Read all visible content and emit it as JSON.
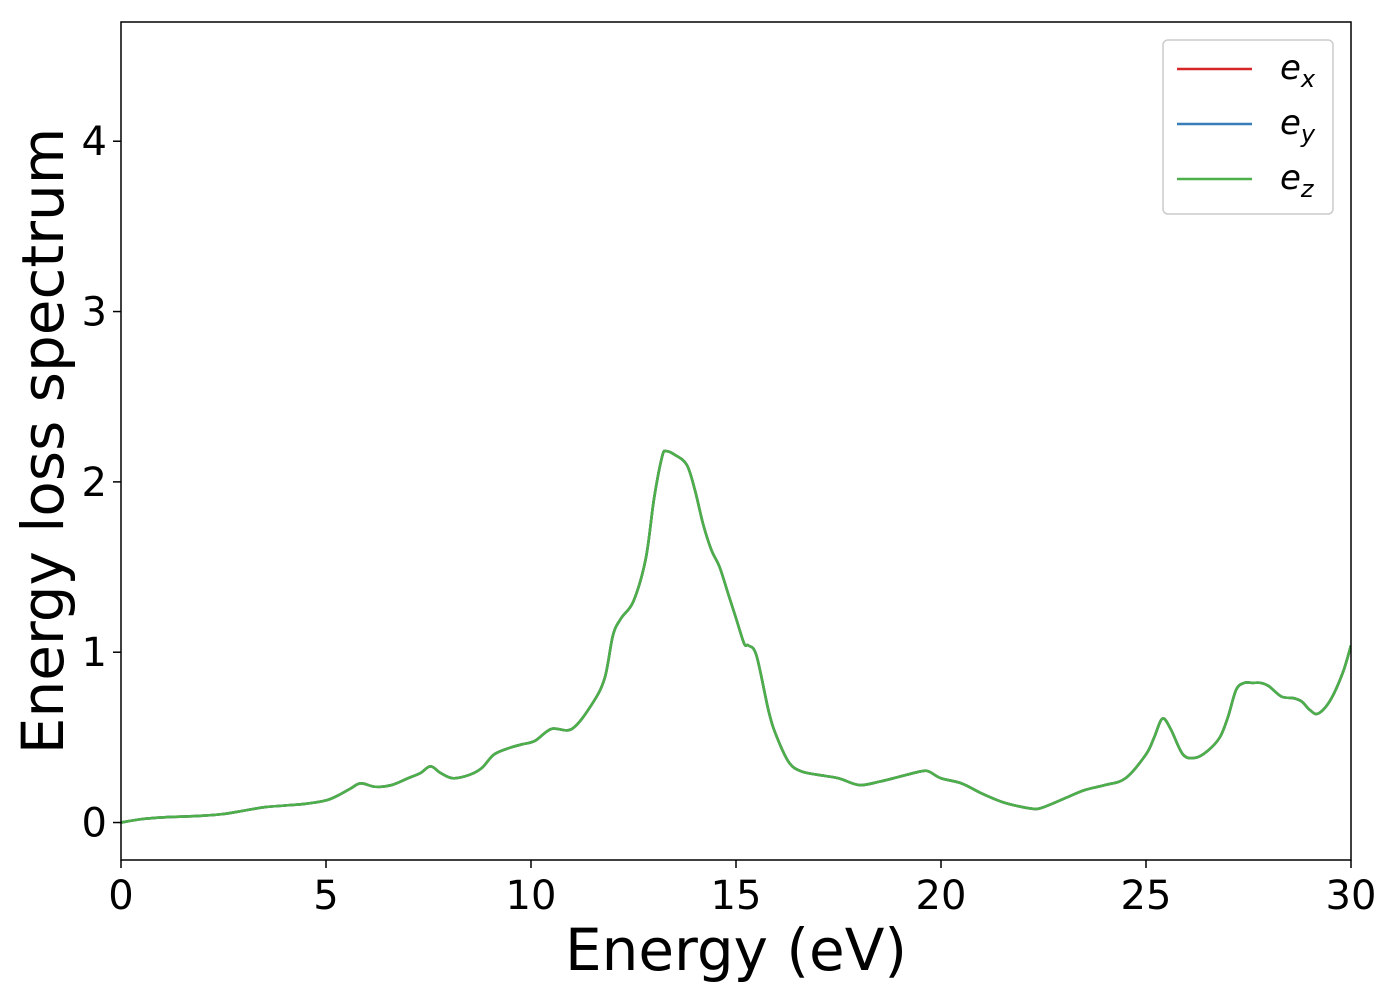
{
  "chart_data": {
    "type": "line",
    "title": "",
    "xlabel": "Energy (eV)",
    "ylabel": "Energy loss spectrum",
    "xlim": [
      0,
      30
    ],
    "ylim": [
      -0.22,
      4.7
    ],
    "xticks": [
      0,
      5,
      10,
      15,
      20,
      25,
      30
    ],
    "yticks": [
      0,
      1,
      2,
      3,
      4
    ],
    "grid": false,
    "legend_position": "top-right",
    "series": [
      {
        "name": "e",
        "subscript": "x",
        "color": "#d62728",
        "x": [
          0,
          0.5,
          1,
          1.5,
          2,
          2.5,
          3,
          3.5,
          4,
          4.5,
          5,
          5.3,
          5.6,
          5.85,
          6.2,
          6.6,
          7,
          7.3,
          7.55,
          7.8,
          8.1,
          8.5,
          8.8,
          9.1,
          9.5,
          9.8,
          10.1,
          10.5,
          11,
          11.5,
          11.8,
          12,
          12.2,
          12.5,
          12.8,
          13,
          13.2,
          13.3,
          13.5,
          13.8,
          14,
          14.2,
          14.4,
          14.6,
          14.8,
          15,
          15.2,
          15.3,
          15.5,
          15.8,
          16,
          16.3,
          16.6,
          17,
          17.5,
          18,
          18.5,
          19,
          19.5,
          19.7,
          20,
          20.5,
          21,
          21.5,
          22,
          22.3,
          22.5,
          23,
          23.5,
          24,
          24.5,
          25,
          25.2,
          25.4,
          25.6,
          25.9,
          26.2,
          26.5,
          26.8,
          27,
          27.2,
          27.4,
          27.6,
          27.8,
          28,
          28.3,
          28.6,
          28.8,
          29,
          29.2,
          29.5,
          29.8,
          30
        ],
        "y": [
          0,
          0.02,
          0.03,
          0.035,
          0.04,
          0.05,
          0.07,
          0.09,
          0.1,
          0.11,
          0.13,
          0.16,
          0.2,
          0.23,
          0.21,
          0.22,
          0.26,
          0.29,
          0.33,
          0.29,
          0.26,
          0.28,
          0.32,
          0.4,
          0.44,
          0.46,
          0.48,
          0.55,
          0.55,
          0.7,
          0.85,
          1.1,
          1.2,
          1.3,
          1.55,
          1.9,
          2.15,
          2.18,
          2.16,
          2.1,
          1.95,
          1.75,
          1.6,
          1.5,
          1.35,
          1.2,
          1.05,
          1.04,
          0.98,
          0.65,
          0.5,
          0.35,
          0.3,
          0.28,
          0.26,
          0.22,
          0.24,
          0.27,
          0.3,
          0.3,
          0.26,
          0.23,
          0.17,
          0.12,
          0.09,
          0.08,
          0.09,
          0.14,
          0.19,
          0.22,
          0.26,
          0.4,
          0.5,
          0.61,
          0.55,
          0.4,
          0.38,
          0.42,
          0.5,
          0.62,
          0.78,
          0.82,
          0.82,
          0.82,
          0.8,
          0.74,
          0.73,
          0.71,
          0.66,
          0.64,
          0.72,
          0.88,
          1.04
        ]
      },
      {
        "name": "e",
        "subscript": "y",
        "color": "#377eb8",
        "x": [
          0,
          0.5,
          1,
          1.5,
          2,
          2.5,
          3,
          3.5,
          4,
          4.5,
          5,
          5.3,
          5.6,
          5.85,
          6.2,
          6.6,
          7,
          7.3,
          7.55,
          7.8,
          8.1,
          8.5,
          8.8,
          9.1,
          9.5,
          9.8,
          10.1,
          10.5,
          11,
          11.5,
          11.8,
          12,
          12.2,
          12.5,
          12.8,
          13,
          13.2,
          13.3,
          13.5,
          13.8,
          14,
          14.2,
          14.4,
          14.6,
          14.8,
          15,
          15.2,
          15.3,
          15.5,
          15.8,
          16,
          16.3,
          16.6,
          17,
          17.5,
          18,
          18.5,
          19,
          19.5,
          19.7,
          20,
          20.5,
          21,
          21.5,
          22,
          22.3,
          22.5,
          23,
          23.5,
          24,
          24.5,
          25,
          25.2,
          25.4,
          25.6,
          25.9,
          26.2,
          26.5,
          26.8,
          27,
          27.2,
          27.4,
          27.6,
          27.8,
          28,
          28.3,
          28.6,
          28.8,
          29,
          29.2,
          29.5,
          29.8,
          30
        ],
        "y": [
          0,
          0.02,
          0.03,
          0.035,
          0.04,
          0.05,
          0.07,
          0.09,
          0.1,
          0.11,
          0.13,
          0.16,
          0.2,
          0.23,
          0.21,
          0.22,
          0.26,
          0.29,
          0.33,
          0.29,
          0.26,
          0.28,
          0.32,
          0.4,
          0.44,
          0.46,
          0.48,
          0.55,
          0.55,
          0.7,
          0.85,
          1.1,
          1.2,
          1.3,
          1.55,
          1.9,
          2.15,
          2.18,
          2.16,
          2.1,
          1.95,
          1.75,
          1.6,
          1.5,
          1.35,
          1.2,
          1.05,
          1.04,
          0.98,
          0.65,
          0.5,
          0.35,
          0.3,
          0.28,
          0.26,
          0.22,
          0.24,
          0.27,
          0.3,
          0.3,
          0.26,
          0.23,
          0.17,
          0.12,
          0.09,
          0.08,
          0.09,
          0.14,
          0.19,
          0.22,
          0.26,
          0.4,
          0.5,
          0.61,
          0.55,
          0.4,
          0.38,
          0.42,
          0.5,
          0.62,
          0.78,
          0.82,
          0.82,
          0.82,
          0.8,
          0.74,
          0.73,
          0.71,
          0.66,
          0.64,
          0.72,
          0.88,
          1.04
        ]
      },
      {
        "name": "e",
        "subscript": "z",
        "color": "#4daf4a",
        "x": [
          0,
          0.5,
          1,
          1.5,
          2,
          2.5,
          3,
          3.5,
          4,
          4.5,
          5,
          5.3,
          5.6,
          5.85,
          6.2,
          6.6,
          7,
          7.3,
          7.55,
          7.8,
          8.1,
          8.5,
          8.8,
          9.1,
          9.5,
          9.8,
          10.1,
          10.5,
          11,
          11.5,
          11.8,
          12,
          12.2,
          12.5,
          12.8,
          13,
          13.2,
          13.3,
          13.5,
          13.8,
          14,
          14.2,
          14.4,
          14.6,
          14.8,
          15,
          15.2,
          15.3,
          15.5,
          15.8,
          16,
          16.3,
          16.6,
          17,
          17.5,
          18,
          18.5,
          19,
          19.5,
          19.7,
          20,
          20.5,
          21,
          21.5,
          22,
          22.3,
          22.5,
          23,
          23.5,
          24,
          24.5,
          25,
          25.2,
          25.4,
          25.6,
          25.9,
          26.2,
          26.5,
          26.8,
          27,
          27.2,
          27.4,
          27.6,
          27.8,
          28,
          28.3,
          28.6,
          28.8,
          29,
          29.2,
          29.5,
          29.8,
          30
        ],
        "y": [
          0,
          0.02,
          0.03,
          0.035,
          0.04,
          0.05,
          0.07,
          0.09,
          0.1,
          0.11,
          0.13,
          0.16,
          0.2,
          0.23,
          0.21,
          0.22,
          0.26,
          0.29,
          0.33,
          0.29,
          0.26,
          0.28,
          0.32,
          0.4,
          0.44,
          0.46,
          0.48,
          0.55,
          0.55,
          0.7,
          0.85,
          1.1,
          1.2,
          1.3,
          1.55,
          1.9,
          2.15,
          2.18,
          2.16,
          2.1,
          1.95,
          1.75,
          1.6,
          1.5,
          1.35,
          1.2,
          1.05,
          1.04,
          0.98,
          0.65,
          0.5,
          0.35,
          0.3,
          0.28,
          0.26,
          0.22,
          0.24,
          0.27,
          0.3,
          0.3,
          0.26,
          0.23,
          0.17,
          0.12,
          0.09,
          0.08,
          0.09,
          0.14,
          0.19,
          0.22,
          0.26,
          0.4,
          0.5,
          0.61,
          0.55,
          0.4,
          0.38,
          0.42,
          0.5,
          0.62,
          0.78,
          0.82,
          0.82,
          0.82,
          0.8,
          0.74,
          0.73,
          0.71,
          0.66,
          0.64,
          0.72,
          0.88,
          1.04
        ]
      }
    ]
  }
}
